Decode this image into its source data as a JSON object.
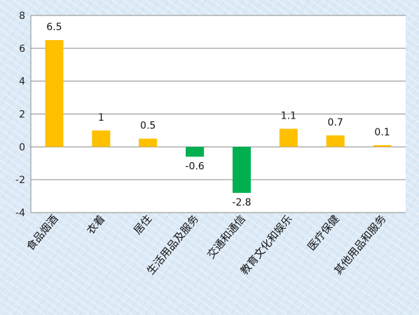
{
  "chart_data": {
    "type": "bar",
    "categories": [
      "食品烟酒",
      "衣着",
      "居住",
      "生活用品及服务",
      "交通和通信",
      "教育文化和娱乐",
      "医疗保健",
      "其他用品和服务"
    ],
    "values": [
      6.5,
      1,
      0.5,
      -0.6,
      -2.8,
      1.1,
      0.7,
      0.1
    ],
    "data_labels": [
      "6.5",
      "1",
      "0.5",
      "-0.6",
      "-2.8",
      "1.1",
      "0.7",
      "0.1"
    ],
    "ylim": [
      -4,
      8
    ],
    "yticks": [
      -4,
      -2,
      0,
      2,
      4,
      6,
      8
    ],
    "grid": true,
    "legend": "none",
    "title": "",
    "xlabel": "",
    "ylabel": "",
    "colors": {
      "positive": "#ffc000",
      "negative": "#00b050",
      "grid": "#8a8a8a",
      "plot_bg": "#ffffff"
    }
  }
}
